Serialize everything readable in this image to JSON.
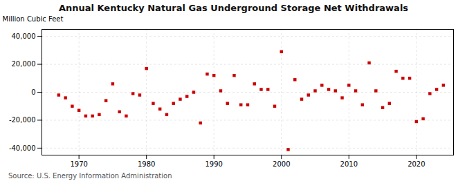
{
  "chart_data": {
    "type": "scatter",
    "title": "Annual Kentucky Natural Gas Underground Storage Net Withdrawals",
    "ylabel": "Million Cubic Feet",
    "source": "Source: U.S. Energy Information Administration",
    "x": [
      1967,
      1968,
      1969,
      1970,
      1971,
      1972,
      1973,
      1974,
      1975,
      1976,
      1977,
      1978,
      1979,
      1980,
      1981,
      1982,
      1983,
      1984,
      1985,
      1986,
      1987,
      1988,
      1989,
      1990,
      1991,
      1992,
      1993,
      1994,
      1995,
      1996,
      1997,
      1998,
      1999,
      2000,
      2001,
      2002,
      2003,
      2004,
      2005,
      2006,
      2007,
      2008,
      2009,
      2010,
      2011,
      2012,
      2013,
      2014,
      2015,
      2016,
      2017,
      2018,
      2019,
      2020,
      2021,
      2022,
      2023,
      2024
    ],
    "values": [
      -2000,
      -4000,
      -10000,
      -13000,
      -17000,
      -17000,
      -16000,
      -6000,
      6000,
      -14000,
      -17000,
      -1000,
      -2000,
      17000,
      -8000,
      -12000,
      -16000,
      -8000,
      -5000,
      -3000,
      0,
      -22000,
      13000,
      12000,
      1000,
      -8000,
      12000,
      -9000,
      -9000,
      6000,
      2000,
      2000,
      -10000,
      29000,
      -41000,
      9000,
      -5000,
      -2000,
      1000,
      5000,
      2000,
      1000,
      -4000,
      5000,
      1000,
      -9000,
      21000,
      1000,
      -11000,
      -8000,
      15000,
      10000,
      10000,
      -21000,
      -19000,
      -1000,
      2000,
      5000
    ],
    "color": "#cc0000",
    "marker": "square",
    "xlim": [
      1964.5,
      2025.5
    ],
    "xticks": [
      1970,
      1980,
      1990,
      2000,
      2010,
      2020
    ],
    "ylim": [
      -45000,
      45000
    ],
    "yticks": [
      {
        "value": -40000,
        "label": "-40,000"
      },
      {
        "value": -20000,
        "label": "-20,000"
      },
      0,
      {
        "value": 20000,
        "label": "20,000"
      },
      {
        "value": 40000,
        "label": "40,000"
      }
    ],
    "grid": true
  }
}
